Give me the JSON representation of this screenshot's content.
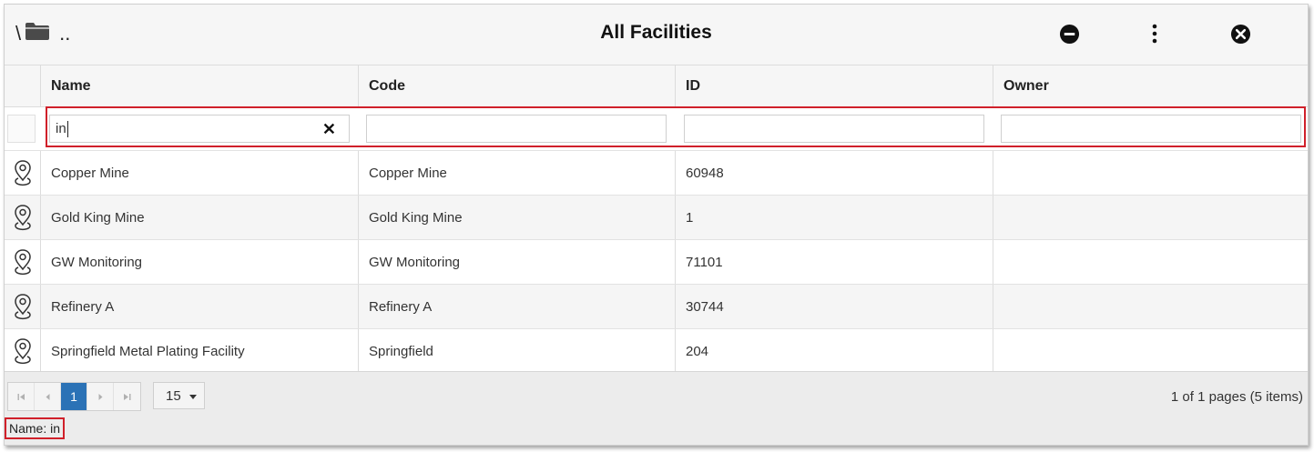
{
  "window": {
    "title": "All Facilities",
    "breadcrumb": {
      "root": "\\",
      "up": ".."
    }
  },
  "toolbar": {
    "minimize_icon": "minus-circle-icon",
    "menu_icon": "vertical-dots-icon",
    "close_icon": "close-circle-icon"
  },
  "grid": {
    "columns": [
      "Name",
      "Code",
      "ID",
      "Owner"
    ],
    "filters": {
      "name": "in",
      "code": "",
      "id": "",
      "owner": ""
    },
    "rows": [
      {
        "name": "Copper Mine",
        "code": "Copper Mine",
        "id": "60948",
        "owner": ""
      },
      {
        "name": "Gold King Mine",
        "code": "Gold King Mine",
        "id": "1",
        "owner": ""
      },
      {
        "name": "GW Monitoring",
        "code": "GW Monitoring",
        "id": "71101",
        "owner": ""
      },
      {
        "name": "Refinery A",
        "code": "Refinery A",
        "id": "30744",
        "owner": ""
      },
      {
        "name": "Springfield Metal Plating Facility",
        "code": "Springfield",
        "id": "204",
        "owner": ""
      }
    ],
    "row_icon": "map-pin-icon"
  },
  "pager": {
    "current_page": "1",
    "page_size": "15",
    "info": "1 of 1 pages (5 items)"
  },
  "filter_status": "Name: in",
  "colors": {
    "accent": "#2b72b6",
    "highlight": "#d0202a"
  }
}
